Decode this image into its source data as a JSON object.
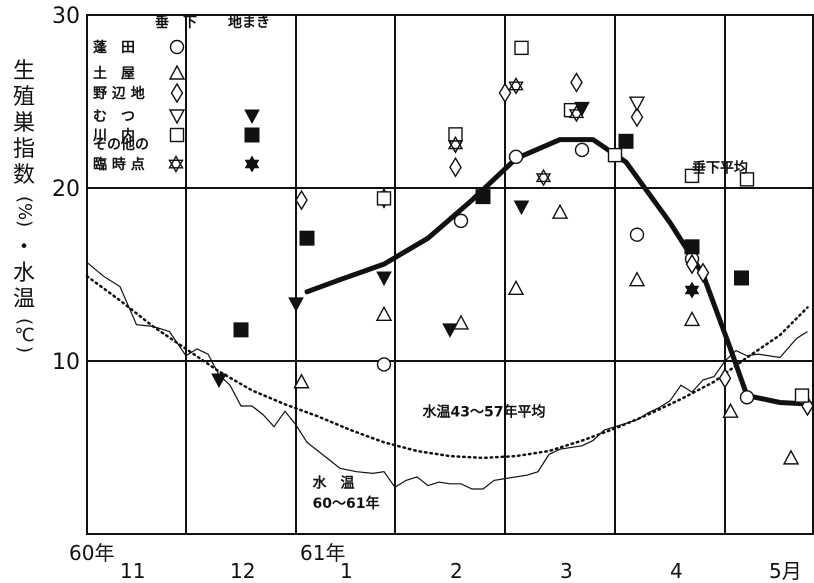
{
  "chart_data": {
    "type": "scatter",
    "ylabel_chars": [
      "生",
      "殖",
      "巣",
      "指",
      "数",
      "(%)",
      "・",
      "水",
      "温",
      "(℃)"
    ],
    "ylim": [
      0,
      30
    ],
    "y_ticks": [
      {
        "value": 10,
        "label": "10"
      },
      {
        "value": 20,
        "label": "20"
      },
      {
        "value": 30,
        "label": "30"
      }
    ],
    "x_range": [
      0,
      6.5
    ],
    "x_tick_labels": [
      {
        "x": 0.0,
        "label": "60年",
        "row": 1
      },
      {
        "x": 0.3,
        "label": "11",
        "row": 2
      },
      {
        "x": 1.3,
        "label": "12",
        "row": 2
      },
      {
        "x": 2.1,
        "label": "61年",
        "row": 1
      },
      {
        "x": 2.3,
        "label": "1",
        "row": 2
      },
      {
        "x": 3.3,
        "label": "2",
        "row": 2
      },
      {
        "x": 4.3,
        "label": "3",
        "row": 2
      },
      {
        "x": 5.3,
        "label": "4",
        "row": 2
      },
      {
        "x": 6.2,
        "label": "5月",
        "row": 2
      }
    ],
    "vertical_gridlines_x": [
      0.9,
      1.9,
      2.8,
      3.8,
      4.8,
      5.8
    ],
    "horizontal_gridlines_y": [
      10,
      20
    ],
    "legend": {
      "header_vertical": "垂　下",
      "header_ground": "地まき",
      "entries": [
        {
          "label": "蓬　田",
          "hanging_symbol": "circle"
        },
        {
          "label": "土　屋",
          "hanging_symbol": "triangle-up"
        },
        {
          "label": "野 辺 地",
          "hanging_symbol": "diamond"
        },
        {
          "label": "む　つ",
          "hanging_symbol": "triangle-down",
          "ground_symbol": "triangle-down-filled"
        },
        {
          "label": "川　内",
          "hanging_symbol": "square",
          "ground_symbol": "square-filled"
        },
        {
          "label": "その他の",
          "label2": "臨 時 点",
          "hanging_symbol": "star-open",
          "ground_symbol": "star-filled"
        }
      ]
    },
    "annotations": [
      {
        "text": "垂下平均",
        "x": 5.5,
        "y": 20.9
      },
      {
        "text": "水温43～57年平均",
        "x": 3.05,
        "y": 6.8
      },
      {
        "text": "水　温",
        "x": 2.05,
        "y": 2.7
      },
      {
        "text": "60～61年",
        "x": 2.05,
        "y": 1.5
      }
    ],
    "series": [
      {
        "marker": "circle",
        "points": [
          [
            2.7,
            9.8
          ],
          [
            3.4,
            18.1
          ],
          [
            3.9,
            21.8
          ],
          [
            4.5,
            22.2
          ],
          [
            5.0,
            17.3
          ],
          [
            5.5,
            15.9
          ],
          [
            6.0,
            7.9
          ],
          [
            6.5,
            7.9
          ]
        ]
      },
      {
        "marker": "triangle-up",
        "points": [
          [
            1.95,
            8.8
          ],
          [
            2.7,
            12.7
          ],
          [
            3.4,
            12.2
          ],
          [
            3.9,
            14.2
          ],
          [
            4.3,
            18.6
          ],
          [
            5.0,
            14.7
          ],
          [
            5.5,
            12.4
          ],
          [
            5.85,
            7.1
          ],
          [
            6.4,
            4.4
          ]
        ]
      },
      {
        "marker": "diamond",
        "points": [
          [
            1.95,
            19.3
          ],
          [
            2.7,
            19.4
          ],
          [
            3.35,
            21.2
          ],
          [
            3.35,
            22.6
          ],
          [
            3.8,
            25.5
          ],
          [
            4.45,
            26.1
          ],
          [
            5.0,
            24.1
          ],
          [
            5.5,
            15.6
          ],
          [
            5.6,
            15.1
          ],
          [
            5.8,
            9.0
          ],
          [
            6.55,
            7.4
          ]
        ]
      },
      {
        "marker": "triangle-down",
        "points": [
          [
            5.0,
            24.9
          ]
        ]
      },
      {
        "marker": "square",
        "points": [
          [
            2.7,
            19.4
          ],
          [
            3.35,
            23.1
          ],
          [
            3.95,
            28.1
          ],
          [
            4.4,
            24.5
          ],
          [
            4.8,
            21.9
          ],
          [
            5.5,
            20.7
          ],
          [
            6.0,
            20.5
          ],
          [
            6.5,
            8.0
          ]
        ]
      },
      {
        "marker": "star-open",
        "points": [
          [
            3.35,
            22.5
          ],
          [
            3.9,
            25.9
          ],
          [
            4.15,
            20.6
          ],
          [
            4.45,
            24.3
          ]
        ]
      },
      {
        "marker": "triangle-down-filled",
        "points": [
          [
            1.2,
            8.9
          ],
          [
            1.9,
            13.3
          ],
          [
            2.7,
            14.8
          ],
          [
            3.3,
            11.8
          ],
          [
            3.95,
            18.9
          ],
          [
            4.5,
            24.6
          ],
          [
            5.5,
            16.6
          ]
        ]
      },
      {
        "marker": "square-filled",
        "points": [
          [
            1.4,
            11.8
          ],
          [
            2.0,
            17.1
          ],
          [
            3.6,
            19.5
          ],
          [
            4.9,
            22.7
          ],
          [
            5.5,
            16.6
          ],
          [
            5.95,
            14.8
          ]
        ]
      },
      {
        "marker": "star-filled",
        "points": [
          [
            5.5,
            14.1
          ]
        ]
      }
    ],
    "lines": [
      {
        "name": "垂下平均",
        "style": "thick",
        "points": [
          [
            2.0,
            14.0
          ],
          [
            2.3,
            14.7
          ],
          [
            2.7,
            15.6
          ],
          [
            3.1,
            17.1
          ],
          [
            3.5,
            19.3
          ],
          [
            3.9,
            21.7
          ],
          [
            4.3,
            22.8
          ],
          [
            4.6,
            22.8
          ],
          [
            4.9,
            21.5
          ],
          [
            5.3,
            18.0
          ],
          [
            5.6,
            15.0
          ],
          [
            5.85,
            10.7
          ],
          [
            6.0,
            8.0
          ],
          [
            6.3,
            7.6
          ],
          [
            6.6,
            7.5
          ]
        ]
      },
      {
        "name": "水温43～57年平均",
        "style": "dotted",
        "points": [
          [
            0.0,
            14.9
          ],
          [
            0.3,
            13.5
          ],
          [
            0.6,
            12.0
          ],
          [
            0.9,
            10.7
          ],
          [
            1.2,
            9.4
          ],
          [
            1.5,
            8.3
          ],
          [
            1.8,
            7.5
          ],
          [
            2.1,
            6.8
          ],
          [
            2.4,
            6.0
          ],
          [
            2.7,
            5.3
          ],
          [
            3.0,
            4.8
          ],
          [
            3.3,
            4.5
          ],
          [
            3.6,
            4.4
          ],
          [
            3.9,
            4.5
          ],
          [
            4.2,
            4.8
          ],
          [
            4.5,
            5.4
          ],
          [
            4.8,
            6.1
          ],
          [
            5.1,
            6.9
          ],
          [
            5.4,
            7.8
          ],
          [
            5.7,
            8.8
          ],
          [
            6.0,
            10.2
          ],
          [
            6.3,
            11.5
          ],
          [
            6.55,
            13.1
          ]
        ]
      },
      {
        "name": "水温60～61年",
        "style": "thin",
        "points": [
          [
            0.0,
            15.7
          ],
          [
            0.15,
            14.9
          ],
          [
            0.3,
            14.3
          ],
          [
            0.45,
            12.1
          ],
          [
            0.6,
            12.0
          ],
          [
            0.75,
            11.7
          ],
          [
            0.9,
            10.3
          ],
          [
            1.0,
            10.7
          ],
          [
            1.1,
            10.4
          ],
          [
            1.2,
            9.2
          ],
          [
            1.3,
            8.6
          ],
          [
            1.4,
            7.4
          ],
          [
            1.5,
            7.4
          ],
          [
            1.6,
            6.9
          ],
          [
            1.7,
            6.2
          ],
          [
            1.8,
            7.1
          ],
          [
            1.9,
            6.3
          ],
          [
            2.0,
            5.3
          ],
          [
            2.1,
            4.8
          ],
          [
            2.2,
            4.3
          ],
          [
            2.3,
            3.8
          ],
          [
            2.45,
            3.6
          ],
          [
            2.6,
            3.5
          ],
          [
            2.7,
            3.6
          ],
          [
            2.8,
            2.7
          ],
          [
            2.9,
            3.1
          ],
          [
            3.0,
            3.3
          ],
          [
            3.1,
            2.8
          ],
          [
            3.2,
            3.0
          ],
          [
            3.3,
            2.9
          ],
          [
            3.4,
            2.9
          ],
          [
            3.5,
            2.6
          ],
          [
            3.6,
            2.6
          ],
          [
            3.7,
            3.1
          ],
          [
            3.8,
            3.2
          ],
          [
            4.0,
            3.4
          ],
          [
            4.1,
            3.6
          ],
          [
            4.2,
            4.6
          ],
          [
            4.3,
            4.9
          ],
          [
            4.5,
            5.1
          ],
          [
            4.6,
            5.4
          ],
          [
            4.7,
            6.0
          ],
          [
            4.9,
            6.4
          ],
          [
            5.0,
            6.6
          ],
          [
            5.1,
            7.0
          ],
          [
            5.2,
            7.3
          ],
          [
            5.3,
            7.7
          ],
          [
            5.4,
            8.6
          ],
          [
            5.5,
            8.2
          ],
          [
            5.6,
            8.9
          ],
          [
            5.7,
            9.1
          ],
          [
            5.8,
            10.0
          ],
          [
            5.9,
            10.6
          ],
          [
            6.0,
            10.3
          ],
          [
            6.1,
            10.4
          ],
          [
            6.3,
            10.2
          ],
          [
            6.45,
            11.3
          ],
          [
            6.55,
            11.7
          ]
        ]
      }
    ]
  }
}
